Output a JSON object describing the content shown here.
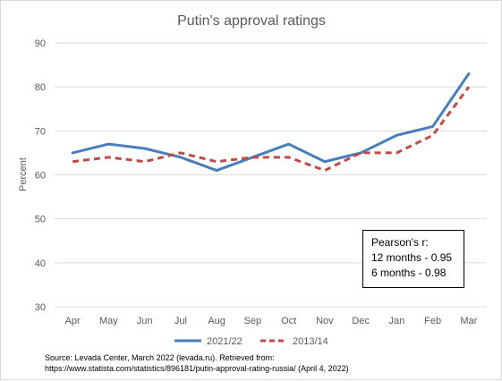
{
  "chart_data": {
    "type": "line",
    "title": "Putin's approval ratings",
    "xlabel": "",
    "ylabel": "Percent",
    "categories": [
      "Apr",
      "May",
      "Jun",
      "Jul",
      "Aug",
      "Sep",
      "Oct",
      "Nov",
      "Dec",
      "Jan",
      "Feb",
      "Mar"
    ],
    "ylim": [
      30,
      90
    ],
    "yticks": [
      30,
      40,
      50,
      60,
      70,
      80,
      90
    ],
    "grid": true,
    "legend_position": "bottom",
    "series": [
      {
        "name": "2021/22",
        "color": "#4a7ebb",
        "style": "solid",
        "values": [
          65,
          67,
          66,
          64,
          61,
          64,
          67,
          63,
          65,
          69,
          71,
          83
        ]
      },
      {
        "name": "2013/14",
        "color": "#be4b48",
        "style": "dashed",
        "values": [
          63,
          64,
          63,
          65,
          63,
          64,
          64,
          61,
          65,
          65,
          69,
          80
        ]
      }
    ],
    "annotation": {
      "lines": [
        "Pearson's r:",
        "12 months - 0.95",
        "6 months - 0.98"
      ]
    },
    "source": {
      "line1": "Source: Levada Center, March 2022 (levada.ru). Retrieved from:",
      "line2": "https://www.statista.com/statistics/896181/putin-approval-rating-russia/ (April 4, 2022)"
    }
  }
}
